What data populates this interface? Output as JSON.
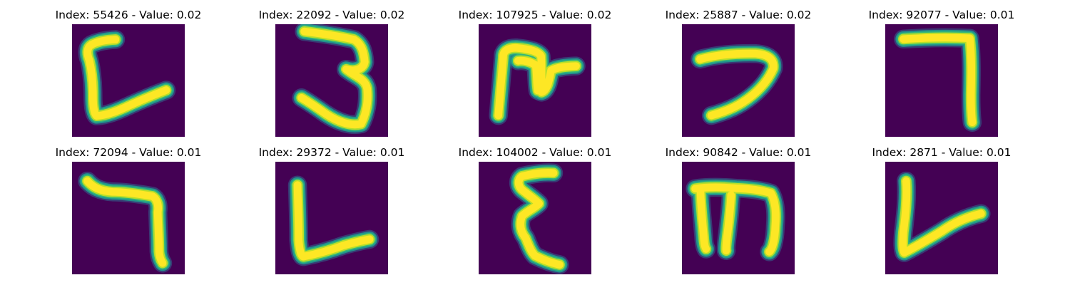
{
  "background": "#440154",
  "stroke_colors": {
    "core": "#fde725",
    "inner_edge": "#b5de2b",
    "mid_edge": "#35b779",
    "outer_edge": "#21918c",
    "halo": "#31688e"
  },
  "panels": [
    {
      "title": "Index: 55426 - Value: 0.02",
      "glyph": "open-bracket-c"
    },
    {
      "title": "Index: 22092 - Value: 0.02",
      "glyph": "digit-three"
    },
    {
      "title": "Index: 107925 - Value: 0.02",
      "glyph": "ring-with-stems"
    },
    {
      "title": "Index: 25887 - Value: 0.02",
      "glyph": "hook-seven"
    },
    {
      "title": "Index: 92077 - Value: 0.01",
      "glyph": "reverse-l"
    },
    {
      "title": "Index: 72094 - Value: 0.01",
      "glyph": "hooked-seven"
    },
    {
      "title": "Index: 29372 - Value: 0.01",
      "glyph": "letter-l"
    },
    {
      "title": "Index: 104002 - Value: 0.01",
      "glyph": "epsilon"
    },
    {
      "title": "Index: 90842 - Value: 0.01",
      "glyph": "letter-m"
    },
    {
      "title": "Index: 2871 - Value: 0.01",
      "glyph": "letter-v"
    }
  ]
}
